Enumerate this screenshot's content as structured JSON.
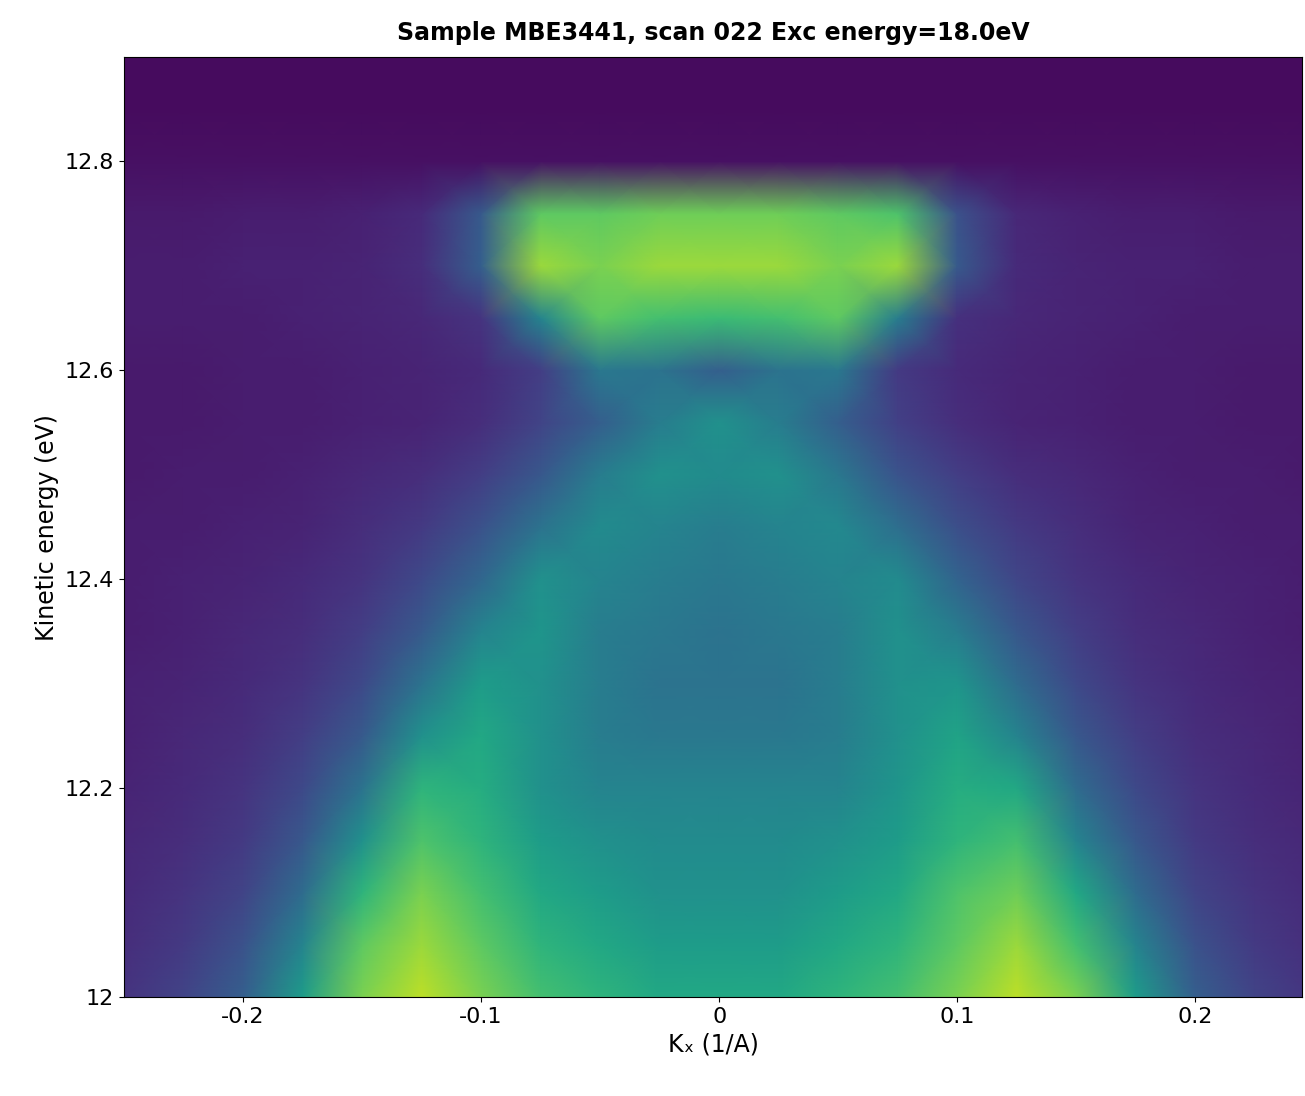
{
  "chart_data": {
    "type": "heatmap",
    "title": "Sample MBE3441, scan 022 Exc energy=18.0eV",
    "x_label": "Kₓ (1/A)",
    "y_label": "Kinetic energy (eV)",
    "x": [
      -0.25,
      -0.225,
      -0.2,
      -0.175,
      -0.15,
      -0.125,
      -0.1,
      -0.075,
      -0.05,
      -0.025,
      0,
      0.025,
      0.05,
      0.075,
      0.1,
      0.125,
      0.15,
      0.175,
      0.2,
      0.225,
      0.25
    ],
    "y": [
      12.0,
      12.05,
      12.1,
      12.15,
      12.2,
      12.25,
      12.3,
      12.35,
      12.4,
      12.45,
      12.5,
      12.55,
      12.6,
      12.65,
      12.7,
      12.75,
      12.8,
      12.85,
      12.9
    ],
    "cells": [
      [
        0.15,
        0.2,
        0.3,
        0.55,
        0.8,
        0.9,
        0.8,
        0.7,
        0.65,
        0.6,
        0.6,
        0.6,
        0.65,
        0.7,
        0.8,
        0.9,
        0.8,
        0.55,
        0.3,
        0.2,
        0.15
      ],
      [
        0.13,
        0.17,
        0.25,
        0.45,
        0.75,
        0.85,
        0.75,
        0.65,
        0.6,
        0.55,
        0.55,
        0.55,
        0.6,
        0.65,
        0.75,
        0.85,
        0.7,
        0.45,
        0.25,
        0.17,
        0.13
      ],
      [
        0.12,
        0.15,
        0.2,
        0.35,
        0.65,
        0.8,
        0.7,
        0.6,
        0.55,
        0.5,
        0.5,
        0.5,
        0.55,
        0.6,
        0.72,
        0.78,
        0.6,
        0.35,
        0.2,
        0.15,
        0.12
      ],
      [
        0.11,
        0.13,
        0.17,
        0.27,
        0.5,
        0.72,
        0.65,
        0.55,
        0.5,
        0.48,
        0.48,
        0.48,
        0.5,
        0.55,
        0.65,
        0.7,
        0.45,
        0.27,
        0.17,
        0.13,
        0.11
      ],
      [
        0.1,
        0.12,
        0.15,
        0.22,
        0.38,
        0.65,
        0.62,
        0.5,
        0.45,
        0.45,
        0.45,
        0.45,
        0.45,
        0.52,
        0.62,
        0.6,
        0.35,
        0.22,
        0.15,
        0.12,
        0.1
      ],
      [
        0.09,
        0.11,
        0.13,
        0.18,
        0.28,
        0.5,
        0.6,
        0.5,
        0.42,
        0.4,
        0.4,
        0.4,
        0.42,
        0.5,
        0.58,
        0.45,
        0.27,
        0.18,
        0.13,
        0.11,
        0.09
      ],
      [
        0.09,
        0.1,
        0.12,
        0.15,
        0.22,
        0.38,
        0.55,
        0.5,
        0.42,
        0.38,
        0.38,
        0.38,
        0.42,
        0.5,
        0.52,
        0.35,
        0.22,
        0.15,
        0.12,
        0.1,
        0.09
      ],
      [
        0.08,
        0.09,
        0.11,
        0.13,
        0.18,
        0.28,
        0.45,
        0.52,
        0.42,
        0.4,
        0.38,
        0.4,
        0.42,
        0.5,
        0.42,
        0.27,
        0.18,
        0.13,
        0.11,
        0.09,
        0.08
      ],
      [
        0.08,
        0.09,
        0.1,
        0.12,
        0.15,
        0.22,
        0.33,
        0.5,
        0.45,
        0.42,
        0.4,
        0.42,
        0.45,
        0.48,
        0.32,
        0.21,
        0.15,
        0.12,
        0.1,
        0.09,
        0.08
      ],
      [
        0.08,
        0.08,
        0.09,
        0.1,
        0.13,
        0.17,
        0.25,
        0.38,
        0.48,
        0.45,
        0.42,
        0.45,
        0.47,
        0.36,
        0.24,
        0.17,
        0.13,
        0.1,
        0.09,
        0.08,
        0.08
      ],
      [
        0.07,
        0.08,
        0.08,
        0.09,
        0.11,
        0.13,
        0.18,
        0.27,
        0.42,
        0.5,
        0.48,
        0.5,
        0.4,
        0.26,
        0.18,
        0.13,
        0.11,
        0.09,
        0.08,
        0.08,
        0.07
      ],
      [
        0.07,
        0.07,
        0.08,
        0.08,
        0.09,
        0.1,
        0.13,
        0.2,
        0.3,
        0.42,
        0.5,
        0.42,
        0.3,
        0.19,
        0.13,
        0.1,
        0.09,
        0.08,
        0.08,
        0.07,
        0.07
      ],
      [
        0.07,
        0.07,
        0.08,
        0.08,
        0.09,
        0.1,
        0.12,
        0.18,
        0.4,
        0.38,
        0.3,
        0.38,
        0.4,
        0.17,
        0.12,
        0.1,
        0.09,
        0.08,
        0.08,
        0.07,
        0.07
      ],
      [
        0.08,
        0.08,
        0.08,
        0.09,
        0.1,
        0.11,
        0.15,
        0.45,
        0.75,
        0.7,
        0.68,
        0.7,
        0.75,
        0.42,
        0.14,
        0.11,
        0.1,
        0.09,
        0.08,
        0.08,
        0.08
      ],
      [
        0.08,
        0.08,
        0.09,
        0.09,
        0.1,
        0.13,
        0.3,
        0.85,
        0.8,
        0.85,
        0.85,
        0.85,
        0.8,
        0.85,
        0.28,
        0.12,
        0.1,
        0.09,
        0.09,
        0.08,
        0.08
      ],
      [
        0.07,
        0.07,
        0.08,
        0.08,
        0.09,
        0.12,
        0.28,
        0.75,
        0.75,
        0.78,
        0.78,
        0.78,
        0.75,
        0.72,
        0.25,
        0.11,
        0.09,
        0.08,
        0.08,
        0.07,
        0.07
      ],
      [
        0.04,
        0.04,
        0.04,
        0.04,
        0.04,
        0.04,
        0.04,
        0.04,
        0.04,
        0.04,
        0.04,
        0.04,
        0.04,
        0.04,
        0.04,
        0.04,
        0.04,
        0.04,
        0.04,
        0.04,
        0.04
      ],
      [
        0.03,
        0.03,
        0.03,
        0.03,
        0.03,
        0.03,
        0.03,
        0.03,
        0.03,
        0.03,
        0.03,
        0.03,
        0.03,
        0.03,
        0.03,
        0.03,
        0.03,
        0.03,
        0.03,
        0.03,
        0.03
      ],
      [
        0.03,
        0.03,
        0.03,
        0.03,
        0.03,
        0.03,
        0.03,
        0.03,
        0.03,
        0.03,
        0.03,
        0.03,
        0.03,
        0.03,
        0.03,
        0.03,
        0.03,
        0.03,
        0.03,
        0.03,
        0.03
      ]
    ],
    "zlim": [
      0,
      1
    ],
    "color": "viridis",
    "xlim": [
      -0.25,
      0.245
    ],
    "ylim": [
      12,
      12.9
    ],
    "xticks": [
      -0.2,
      -0.1,
      0,
      0.1,
      0.2
    ],
    "yticks": [
      12,
      12.2,
      12.4,
      12.6,
      12.8
    ]
  }
}
